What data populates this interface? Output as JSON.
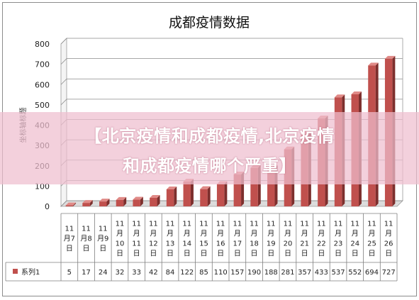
{
  "chart_data": {
    "type": "bar",
    "title": "成都疫情数据",
    "ylabel": "坐标轴标题",
    "xlabel": "",
    "ylim": [
      0,
      800
    ],
    "yticks": [
      "0",
      "100",
      "200",
      "300",
      "400",
      "500",
      "600",
      "700",
      "800"
    ],
    "grid": true,
    "categories": [
      "11月7日",
      "11月8日",
      "11月9日",
      "11月10日",
      "11月11日",
      "11月12日",
      "11月13日",
      "11月14日",
      "11月15日",
      "11月16日",
      "11月17日",
      "11月18日",
      "11月19日",
      "11月20日",
      "11月21日",
      "11月22日",
      "11月23日",
      "11月24日",
      "11月25日",
      "11月26日"
    ],
    "series": [
      {
        "name": "系列1",
        "color": "#c0504d",
        "values": [
          5,
          17,
          24,
          32,
          33,
          42,
          84,
          122,
          85,
          110,
          157,
          190,
          188,
          281,
          357,
          433,
          537,
          552,
          694,
          727
        ]
      }
    ]
  },
  "overlay": {
    "line1": "【北京疫情和成都疫情,北京疫情",
    "line2": "和成都疫情哪个严重】"
  }
}
